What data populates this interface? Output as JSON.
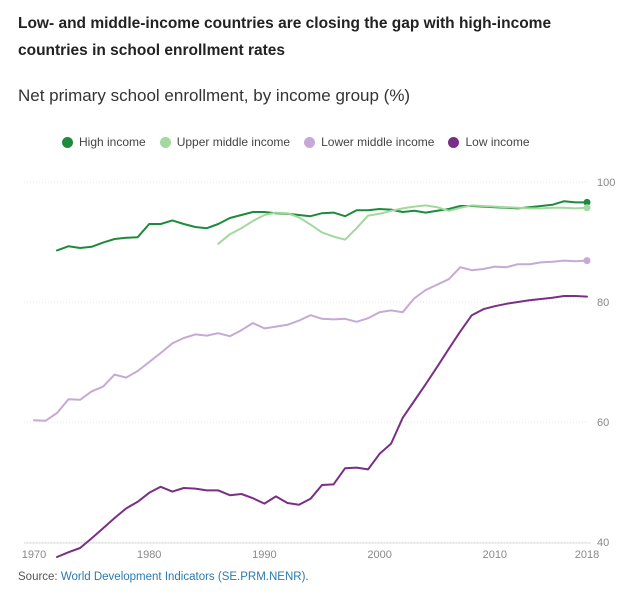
{
  "title": "Low- and middle-income countries are closing the gap with high-income countries in school enrollment rates",
  "subtitle": "Net primary school enrollment, by income group (%)",
  "source": {
    "label": "Source:",
    "link_text": "World Development Indicators (SE.PRM.NENR)",
    "suffix": "."
  },
  "chart_data": {
    "type": "line",
    "title": "Low- and middle-income countries are closing the gap with high-income countries in school enrollment rates",
    "subtitle": "Net primary school enrollment, by income group (%)",
    "xlabel": "",
    "ylabel": "",
    "xlim": [
      1970,
      2018
    ],
    "ylim": [
      40,
      100
    ],
    "x_ticks": [
      1970,
      1980,
      1990,
      2000,
      2010,
      2018
    ],
    "y_ticks": [
      40,
      60,
      80,
      100
    ],
    "legend_position": "top",
    "series": [
      {
        "name": "High income",
        "color": "#1e8a3c",
        "end_marker": true,
        "points": [
          [
            1972,
            88.6
          ],
          [
            1973,
            89.3
          ],
          [
            1974,
            89.0
          ],
          [
            1975,
            89.2
          ],
          [
            1976,
            89.9
          ],
          [
            1977,
            90.5
          ],
          [
            1978,
            90.7
          ],
          [
            1979,
            90.8
          ],
          [
            1980,
            93.0
          ],
          [
            1981,
            93.0
          ],
          [
            1982,
            93.6
          ],
          [
            1983,
            93.0
          ],
          [
            1984,
            92.5
          ],
          [
            1985,
            92.3
          ],
          [
            1986,
            93.0
          ],
          [
            1987,
            94.0
          ],
          [
            1988,
            94.5
          ],
          [
            1989,
            95.0
          ],
          [
            1990,
            95.0
          ],
          [
            1991,
            94.8
          ],
          [
            1992,
            94.7
          ],
          [
            1993,
            94.5
          ],
          [
            1994,
            94.3
          ],
          [
            1995,
            94.8
          ],
          [
            1996,
            94.9
          ],
          [
            1997,
            94.3
          ],
          [
            1998,
            95.3
          ],
          [
            1999,
            95.3
          ],
          [
            2000,
            95.5
          ],
          [
            2001,
            95.4
          ],
          [
            2002,
            95.0
          ],
          [
            2003,
            95.2
          ],
          [
            2004,
            94.9
          ],
          [
            2005,
            95.2
          ],
          [
            2006,
            95.5
          ],
          [
            2007,
            96.0
          ],
          [
            2008,
            96.0
          ],
          [
            2009,
            95.9
          ],
          [
            2010,
            95.8
          ],
          [
            2011,
            95.7
          ],
          [
            2012,
            95.6
          ],
          [
            2013,
            95.8
          ],
          [
            2014,
            96.0
          ],
          [
            2015,
            96.2
          ],
          [
            2016,
            96.8
          ],
          [
            2017,
            96.6
          ],
          [
            2018,
            96.6
          ]
        ]
      },
      {
        "name": "Upper middle income",
        "color": "#a3d89e",
        "end_marker": true,
        "points": [
          [
            1986,
            89.7
          ],
          [
            1987,
            91.3
          ],
          [
            1988,
            92.3
          ],
          [
            1989,
            93.5
          ],
          [
            1990,
            94.5
          ],
          [
            1991,
            94.9
          ],
          [
            1992,
            94.8
          ],
          [
            1993,
            94.1
          ],
          [
            1994,
            92.9
          ],
          [
            1995,
            91.6
          ],
          [
            1996,
            90.9
          ],
          [
            1997,
            90.4
          ],
          [
            1998,
            92.3
          ],
          [
            1999,
            94.4
          ],
          [
            2000,
            94.7
          ],
          [
            2001,
            95.2
          ],
          [
            2002,
            95.6
          ],
          [
            2003,
            95.9
          ],
          [
            2004,
            96.1
          ],
          [
            2005,
            95.8
          ],
          [
            2006,
            95.2
          ],
          [
            2007,
            95.7
          ],
          [
            2008,
            96.1
          ],
          [
            2009,
            96.0
          ],
          [
            2010,
            95.9
          ],
          [
            2011,
            95.8
          ],
          [
            2012,
            95.7
          ],
          [
            2013,
            95.6
          ],
          [
            2014,
            95.6
          ],
          [
            2015,
            95.7
          ],
          [
            2016,
            95.7
          ],
          [
            2017,
            95.6
          ],
          [
            2018,
            95.7
          ]
        ]
      },
      {
        "name": "Lower middle income",
        "color": "#c7a9d6",
        "end_marker": true,
        "points": [
          [
            1970,
            60.3
          ],
          [
            1971,
            60.2
          ],
          [
            1972,
            61.5
          ],
          [
            1973,
            63.8
          ],
          [
            1974,
            63.7
          ],
          [
            1975,
            65.1
          ],
          [
            1976,
            65.9
          ],
          [
            1977,
            67.9
          ],
          [
            1978,
            67.4
          ],
          [
            1979,
            68.5
          ],
          [
            1980,
            70.0
          ],
          [
            1981,
            71.5
          ],
          [
            1982,
            73.1
          ],
          [
            1983,
            74.0
          ],
          [
            1984,
            74.6
          ],
          [
            1985,
            74.4
          ],
          [
            1986,
            74.8
          ],
          [
            1987,
            74.3
          ],
          [
            1988,
            75.3
          ],
          [
            1989,
            76.5
          ],
          [
            1990,
            75.6
          ],
          [
            1991,
            75.9
          ],
          [
            1992,
            76.2
          ],
          [
            1993,
            76.9
          ],
          [
            1994,
            77.8
          ],
          [
            1995,
            77.2
          ],
          [
            1996,
            77.1
          ],
          [
            1997,
            77.2
          ],
          [
            1998,
            76.7
          ],
          [
            1999,
            77.3
          ],
          [
            2000,
            78.3
          ],
          [
            2001,
            78.6
          ],
          [
            2002,
            78.3
          ],
          [
            2003,
            80.6
          ],
          [
            2004,
            82.0
          ],
          [
            2005,
            82.9
          ],
          [
            2006,
            83.8
          ],
          [
            2007,
            85.8
          ],
          [
            2008,
            85.3
          ],
          [
            2009,
            85.5
          ],
          [
            2010,
            85.9
          ],
          [
            2011,
            85.8
          ],
          [
            2012,
            86.3
          ],
          [
            2013,
            86.3
          ],
          [
            2014,
            86.6
          ],
          [
            2015,
            86.7
          ],
          [
            2016,
            86.9
          ],
          [
            2017,
            86.8
          ],
          [
            2018,
            86.9
          ]
        ]
      },
      {
        "name": "Low income",
        "color": "#7a2f86",
        "end_marker": false,
        "points": [
          [
            1972,
            37.5
          ],
          [
            1973,
            38.3
          ],
          [
            1974,
            39.0
          ],
          [
            1975,
            40.6
          ],
          [
            1976,
            42.3
          ],
          [
            1977,
            44.0
          ],
          [
            1978,
            45.6
          ],
          [
            1979,
            46.7
          ],
          [
            1980,
            48.2
          ],
          [
            1981,
            49.2
          ],
          [
            1982,
            48.4
          ],
          [
            1983,
            49.0
          ],
          [
            1984,
            48.9
          ],
          [
            1985,
            48.6
          ],
          [
            1986,
            48.6
          ],
          [
            1987,
            47.8
          ],
          [
            1988,
            48.0
          ],
          [
            1989,
            47.3
          ],
          [
            1990,
            46.4
          ],
          [
            1991,
            47.6
          ],
          [
            1992,
            46.5
          ],
          [
            1993,
            46.2
          ],
          [
            1994,
            47.2
          ],
          [
            1995,
            49.5
          ],
          [
            1996,
            49.6
          ],
          [
            1997,
            52.3
          ],
          [
            1998,
            52.4
          ],
          [
            1999,
            52.1
          ],
          [
            2000,
            54.7
          ],
          [
            2001,
            56.4
          ],
          [
            2002,
            60.7
          ],
          [
            2003,
            63.5
          ],
          [
            2004,
            66.3
          ],
          [
            2005,
            69.2
          ],
          [
            2006,
            72.2
          ],
          [
            2007,
            75.1
          ],
          [
            2008,
            77.8
          ],
          [
            2009,
            78.8
          ],
          [
            2010,
            79.3
          ],
          [
            2011,
            79.7
          ],
          [
            2012,
            80.0
          ],
          [
            2013,
            80.3
          ],
          [
            2014,
            80.5
          ],
          [
            2015,
            80.7
          ],
          [
            2016,
            81.0
          ],
          [
            2017,
            81.0
          ],
          [
            2018,
            80.9
          ]
        ]
      }
    ]
  }
}
